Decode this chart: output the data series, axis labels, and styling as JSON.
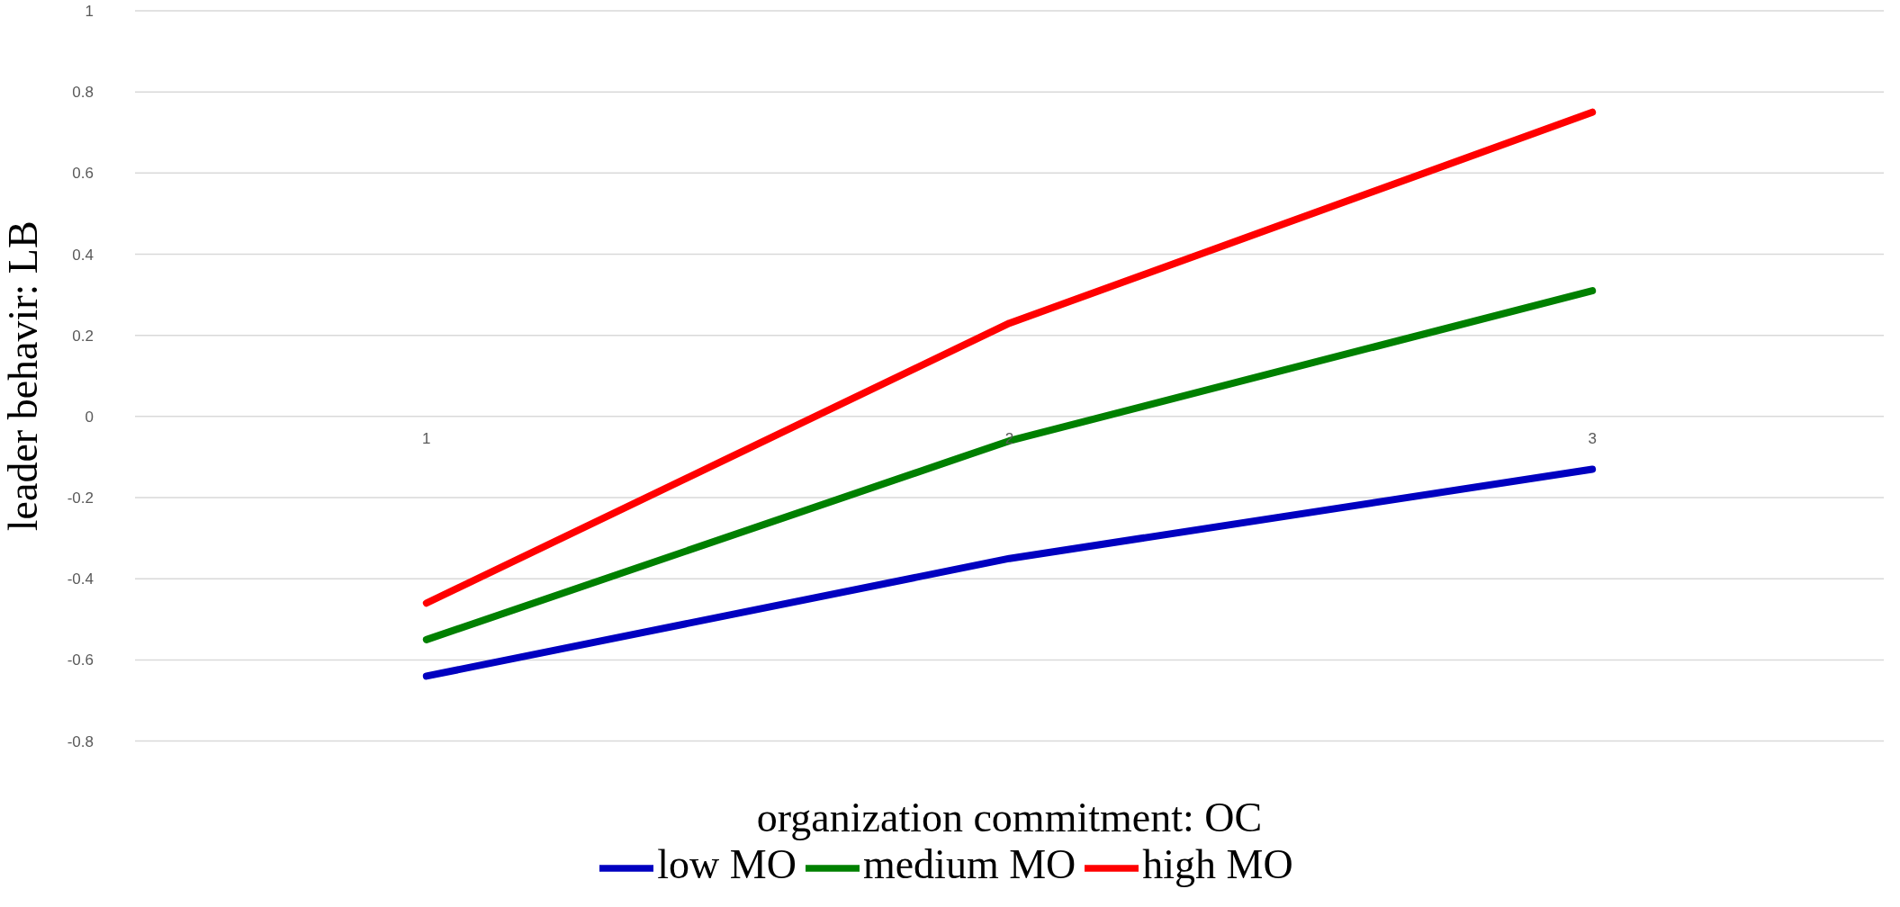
{
  "chart_data": {
    "type": "line",
    "xlabel": "organization commitment: OC",
    "ylabel": "leader behavir: LB",
    "categories": [
      "1",
      "2",
      "3"
    ],
    "series": [
      {
        "name": "low MO",
        "color": "#0000c0",
        "values": [
          -0.64,
          -0.35,
          -0.13
        ]
      },
      {
        "name": "medium MO",
        "color": "#008000",
        "values": [
          -0.55,
          -0.06,
          0.31
        ]
      },
      {
        "name": "high MO",
        "color": "#ff0000",
        "values": [
          -0.46,
          0.23,
          0.75
        ]
      }
    ],
    "ylim": [
      -0.8,
      1
    ],
    "yticks": [
      -0.8,
      -0.6,
      -0.4,
      -0.2,
      0,
      0.2,
      0.4,
      0.6,
      0.8,
      1
    ],
    "grid": "y",
    "legend": "bottom",
    "marker": "none",
    "line_style": "solid"
  }
}
